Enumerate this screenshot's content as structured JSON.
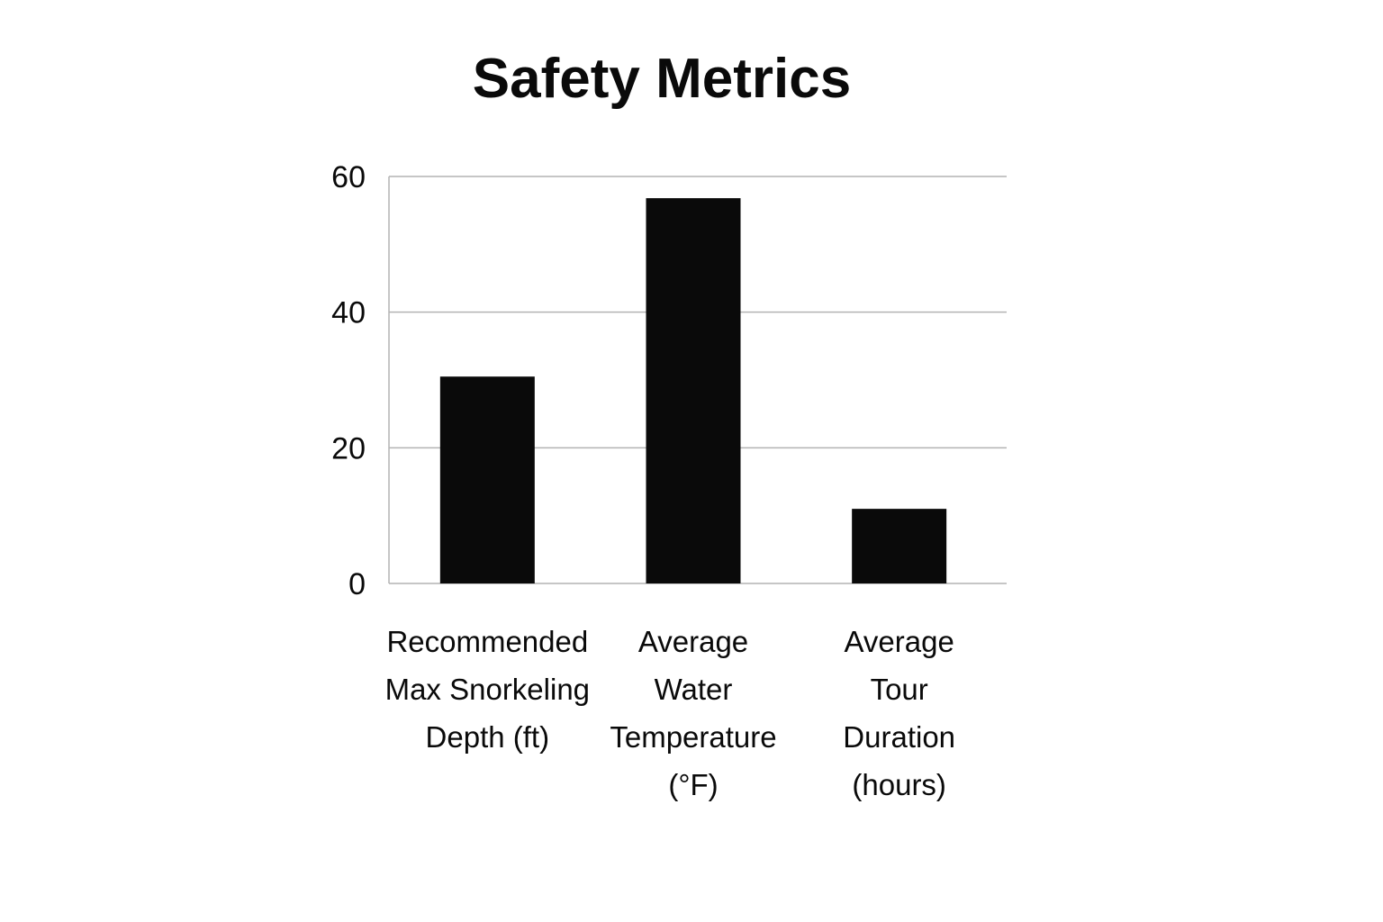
{
  "chart_data": {
    "type": "bar",
    "title": "Safety Metrics",
    "xlabel": "",
    "ylabel": "",
    "categories": [
      [
        "Recommended",
        "Max Snorkeling",
        "Depth (ft)"
      ],
      [
        "Average",
        "Water",
        "Temperature",
        "(°F)"
      ],
      [
        "Average",
        "Tour",
        "Duration",
        "(hours)"
      ]
    ],
    "values": [
      30.5,
      56.8,
      11
    ],
    "ylim": [
      0,
      60
    ],
    "yticks": [
      "0",
      "20",
      "40",
      "60"
    ],
    "grid": true,
    "legend": "none",
    "colors": {
      "bar": "#0a0a0a",
      "grid": "#b3b3b3",
      "text": "#0a0a0a"
    }
  }
}
